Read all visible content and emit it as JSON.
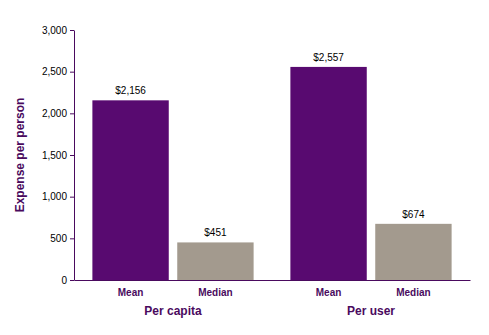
{
  "chart_data": {
    "type": "bar",
    "y_label": "Expense per person",
    "categories": [
      "Per capita",
      "Per user"
    ],
    "series": [
      {
        "name": "Mean",
        "color": "#580a70",
        "values": [
          2156,
          2557
        ],
        "value_labels": [
          "$2,156",
          "$2,557"
        ]
      },
      {
        "name": "Median",
        "color": "#a39a8e",
        "values": [
          451,
          674
        ],
        "value_labels": [
          "$451",
          "$674"
        ]
      }
    ],
    "ylim": [
      0,
      3000
    ],
    "yticks": [
      0,
      500,
      {
        "value": 1000,
        "label": "1,000"
      },
      {
        "value": 1500,
        "label": "1,500"
      },
      {
        "value": 2000,
        "label": "2,000"
      },
      {
        "value": 2500,
        "label": "2,500"
      },
      {
        "value": 3000,
        "label": "3,000"
      }
    ],
    "data_labels": true,
    "grid": false
  }
}
